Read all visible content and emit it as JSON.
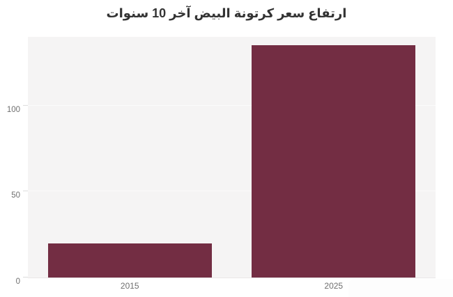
{
  "chart_data": {
    "type": "bar",
    "title": "ارتفاع سعر كرتونة البيض آخر 10 سنوات",
    "categories": [
      "2015",
      "2025"
    ],
    "values": [
      20,
      135
    ],
    "xlabel": "",
    "ylabel": "",
    "ylim": [
      0,
      140
    ],
    "yticks": [
      0,
      50,
      100
    ],
    "grid": true,
    "legend": "none",
    "colors": {
      "bar": "#732d43",
      "plot_background": "#f5f4f4",
      "gridline": "#fbfbfb",
      "tick_dash": "#dcdcdc",
      "axis_label": "#6e6e6e",
      "title": "#333333",
      "page_background": "#ffffff"
    },
    "layout": {
      "bar_width_fraction": 0.402
    }
  }
}
